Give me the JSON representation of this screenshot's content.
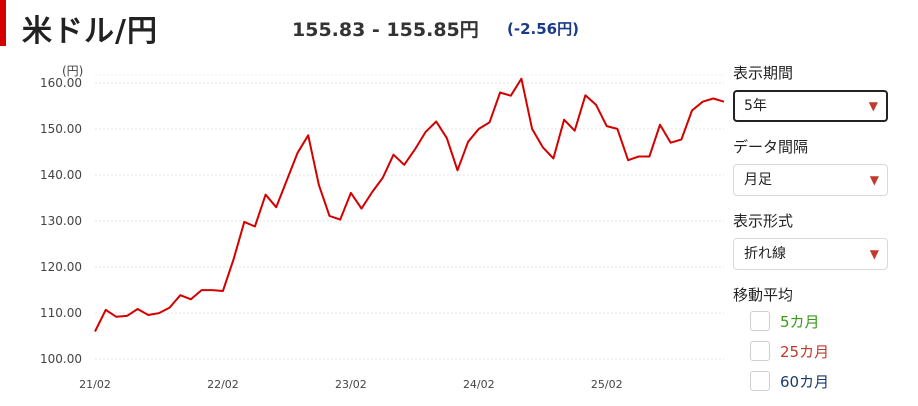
{
  "header": {
    "title": "米ドル/円",
    "rate": "155.83 - 155.85円",
    "change": "(-2.56円)"
  },
  "colors": {
    "accent": "#d40000",
    "line": "#d40000",
    "change": "#1a3a8a",
    "ma5": "#3a9a1c",
    "ma25": "#c0392b",
    "ma60": "#1a3a6a"
  },
  "chart_data": {
    "type": "line",
    "ylabel": "(円)",
    "ylim": [
      97,
      163
    ],
    "yticks": [
      "100.00",
      "110.00",
      "120.00",
      "130.00",
      "140.00",
      "150.00",
      "160.00"
    ],
    "ytick_values": [
      100,
      110,
      120,
      130,
      140,
      150,
      160
    ],
    "xticks": [
      "21/02",
      "22/02",
      "23/02",
      "24/02",
      "25/02"
    ],
    "xtick_months": [
      0,
      12,
      24,
      36,
      48
    ],
    "x_max_month": 59,
    "grid": true,
    "series": [
      {
        "values": [
          106.0,
          110.7,
          109.2,
          109.4,
          110.9,
          109.6,
          110.0,
          111.2,
          113.9,
          113.0,
          115.0,
          115.0,
          114.8,
          121.7,
          129.8,
          128.8,
          135.7,
          133.0,
          138.9,
          144.8,
          148.6,
          137.8,
          131.1,
          130.3,
          136.1,
          132.7,
          136.3,
          139.4,
          144.4,
          142.2,
          145.5,
          149.3,
          151.6,
          148.0,
          141.0,
          147.2,
          150.0,
          151.4,
          157.9,
          157.2,
          160.9,
          150.0,
          146.0,
          143.6,
          152.0,
          149.6,
          157.3,
          155.2,
          150.6,
          150.0,
          143.2,
          144.0,
          144.0,
          150.9,
          147.0,
          147.7,
          154.0,
          155.9,
          156.6,
          155.9
        ]
      }
    ]
  },
  "controls": {
    "period_label": "表示期間",
    "period_value": "5年",
    "interval_label": "データ間隔",
    "interval_value": "月足",
    "format_label": "表示形式",
    "format_value": "折れ線",
    "ma_label": "移動平均",
    "ma_options": [
      {
        "label": "5カ月",
        "checked": false
      },
      {
        "label": "25カ月",
        "checked": false
      },
      {
        "label": "60カ月",
        "checked": false
      }
    ]
  }
}
